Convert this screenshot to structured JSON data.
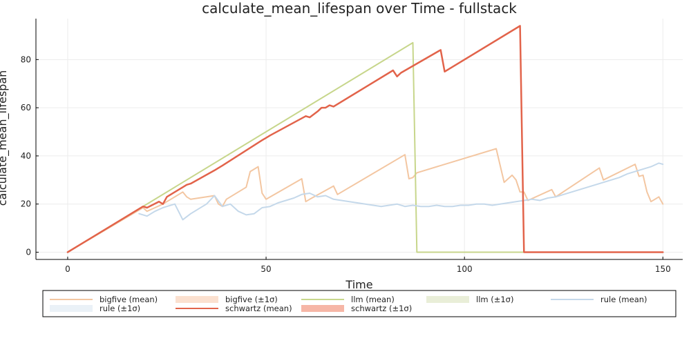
{
  "chart_data": {
    "type": "line",
    "title": "calculate_mean_lifespan over Time - fullstack",
    "xlabel": "Time",
    "ylabel": "calculate_mean_lifespan",
    "xlim": [
      -8,
      155
    ],
    "ylim": [
      -3,
      97
    ],
    "xticks": [
      0,
      50,
      100,
      150
    ],
    "yticks": [
      0,
      20,
      40,
      60,
      80
    ],
    "grid": true,
    "legend_position": "bottom",
    "legend_entries": [
      {
        "label": "bigfive (mean)",
        "kind": "line",
        "color": "#f3c6a1"
      },
      {
        "label": "bigfive (±1σ)",
        "kind": "band",
        "color": "#fbe0cf"
      },
      {
        "label": "llm (mean)",
        "kind": "line",
        "color": "#c7d68b"
      },
      {
        "label": "llm (±1σ)",
        "kind": "band",
        "color": "#e9eed8"
      },
      {
        "label": "rule (mean)",
        "kind": "line",
        "color": "#c4d8ea"
      },
      {
        "label": "rule (±1σ)",
        "kind": "band",
        "color": "#eaf1f7"
      },
      {
        "label": "schwartz (mean)",
        "kind": "line",
        "color": "#e2634a"
      },
      {
        "label": "schwartz (±1σ)",
        "kind": "band",
        "color": "#f6b6a6"
      }
    ],
    "series": [
      {
        "name": "bigfive (mean)",
        "color": "#f3c6a1",
        "width": 2,
        "x": [
          0,
          19,
          20,
          22,
          24,
          25,
          26,
          28,
          29,
          30,
          31,
          37,
          38,
          39,
          40,
          45,
          46,
          48,
          49,
          50,
          59,
          60,
          61,
          67,
          68,
          85,
          86,
          87,
          88,
          108,
          110,
          112,
          113,
          114,
          115,
          116,
          122,
          123,
          134,
          135,
          143,
          144,
          145,
          146,
          147,
          148,
          149,
          150
        ],
        "y": [
          0,
          18.5,
          17,
          18.5,
          20,
          21,
          22,
          24,
          25,
          23,
          22,
          23.5,
          20,
          19,
          22,
          27,
          33.5,
          35.5,
          24.5,
          22,
          30.5,
          21,
          22,
          27.5,
          24,
          40.5,
          30.5,
          31,
          33,
          43,
          29,
          32,
          30,
          25,
          25,
          21.5,
          26,
          23,
          35,
          30,
          36.5,
          31.5,
          32,
          25,
          21,
          22,
          23,
          20
        ]
      },
      {
        "name": "llm (mean)",
        "color": "#c7d68b",
        "width": 2,
        "x": [
          0,
          87,
          88,
          150
        ],
        "y": [
          0,
          87,
          0,
          0
        ]
      },
      {
        "name": "rule (mean)",
        "color": "#c4d8ea",
        "width": 2,
        "x": [
          18,
          20,
          21,
          22,
          24,
          25,
          27,
          29,
          31,
          33,
          35,
          37,
          39,
          41,
          43,
          45,
          47,
          49,
          51,
          53,
          55,
          57,
          59,
          61,
          63,
          65,
          67,
          69,
          71,
          73,
          75,
          77,
          79,
          81,
          83,
          85,
          87,
          89,
          91,
          93,
          95,
          97,
          99,
          101,
          103,
          105,
          107,
          109,
          111,
          113,
          115,
          117,
          119,
          121,
          123,
          125,
          127,
          129,
          131,
          133,
          135,
          137,
          139,
          141,
          143,
          145,
          147,
          149,
          150
        ],
        "y": [
          16,
          15,
          16,
          17,
          18.5,
          19,
          20,
          13.5,
          16,
          18,
          20,
          23.5,
          19,
          20,
          17,
          15.5,
          16,
          18.5,
          19,
          20.5,
          21.5,
          22.5,
          24,
          24.5,
          23,
          23.5,
          22,
          21.5,
          21,
          20.5,
          20,
          19.5,
          19,
          19.5,
          20,
          19,
          19.5,
          19,
          19,
          19.5,
          19,
          19,
          19.5,
          19.5,
          20,
          20,
          19.5,
          20,
          20.5,
          21,
          21.5,
          22,
          21.5,
          22.5,
          23,
          24,
          25,
          26,
          27,
          28,
          29,
          30,
          31,
          32.5,
          33.5,
          34.5,
          35.5,
          37,
          36.5
        ]
      },
      {
        "name": "schwartz (mean)",
        "color": "#e2634a",
        "width": 2.5,
        "x": [
          0,
          19,
          20,
          23,
          24,
          25,
          26,
          28,
          29,
          30,
          31,
          37,
          38,
          39,
          49,
          50,
          51,
          60,
          61,
          63,
          64,
          65,
          66,
          67,
          82,
          83,
          84,
          94,
          95,
          114,
          115,
          150
        ],
        "y": [
          0,
          19,
          18.5,
          21,
          20,
          23,
          24,
          26,
          27,
          28,
          28.5,
          34,
          35,
          36,
          46.5,
          47.5,
          48.5,
          56.5,
          56,
          58.5,
          60,
          60,
          61,
          60.5,
          75.5,
          73,
          74.5,
          84,
          75,
          94,
          0,
          0
        ]
      }
    ]
  }
}
